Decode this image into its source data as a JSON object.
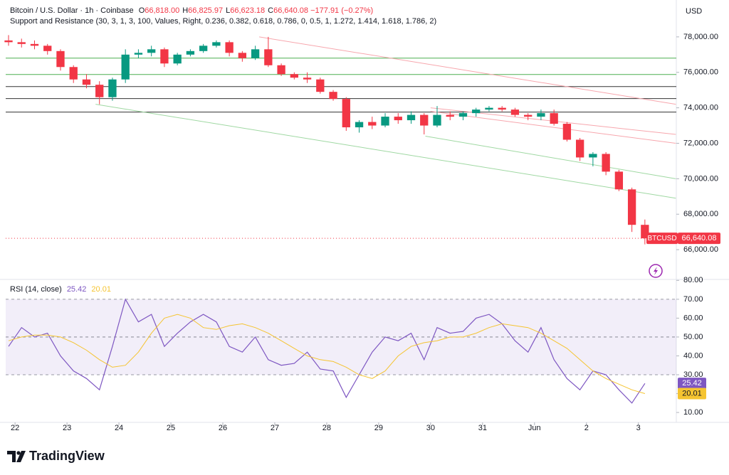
{
  "header": {
    "symbol": "Bitcoin / U.S. Dollar · 1h · Coinbase",
    "ohlc": [
      {
        "key": "O",
        "value": "66,818.00"
      },
      {
        "key": "H",
        "value": "66,825.97"
      },
      {
        "key": "L",
        "value": "66,623.18"
      },
      {
        "key": "C",
        "value": "66,640.08"
      }
    ],
    "change": "−177.91 (−0.27%)",
    "indicator": "Support and Resistance (30, 3, 1, 3, 100, Values, Right, 0.236, 0.382, 0.618, 0.786, 0, 0.5, 1, 1.272, 1.414, 1.618, 1.786, 2)"
  },
  "currency": "USD",
  "brand": "TradingView",
  "chart_data": [
    {
      "type": "candlestick",
      "up_color": "#089981",
      "down_color": "#f23645",
      "x": [
        -0.125,
        0.125,
        0.375,
        0.625,
        0.875,
        1.125,
        1.375,
        1.625,
        1.875,
        2.125,
        2.375,
        2.625,
        2.875,
        3.125,
        3.375,
        3.625,
        3.875,
        4.125,
        4.375,
        4.625,
        4.875,
        5.125,
        5.375,
        5.625,
        5.875,
        6.125,
        6.375,
        6.625,
        6.875,
        7.125,
        7.375,
        7.625,
        7.875,
        8.125,
        8.375,
        8.625,
        8.875,
        9.125,
        9.375,
        9.625,
        9.875,
        10.125,
        10.375,
        10.625,
        10.875,
        11.125,
        11.375,
        11.625,
        11.875,
        12.125
      ],
      "open": [
        77800,
        77700,
        77600,
        77500,
        77200,
        76300,
        75600,
        75300,
        74600,
        75600,
        77000,
        77100,
        77300,
        76500,
        77000,
        77200,
        77500,
        77700,
        77100,
        76800,
        77300,
        76400,
        75900,
        75700,
        75600,
        74900,
        74500,
        72900,
        73200,
        73000,
        73500,
        73300,
        73600,
        73000,
        73600,
        73500,
        73700,
        73900,
        74000,
        73900,
        73600,
        73500,
        73700,
        73100,
        72200,
        71200,
        71400,
        70400,
        69400,
        67400
      ],
      "high": [
        78100,
        77900,
        77800,
        77600,
        77300,
        76400,
        75900,
        75500,
        75700,
        77300,
        77300,
        77500,
        77400,
        77100,
        77300,
        77600,
        77800,
        77800,
        77200,
        77500,
        78000,
        76500,
        76000,
        76000,
        75700,
        75000,
        74600,
        73300,
        73500,
        73700,
        73700,
        73800,
        73700,
        74100,
        73800,
        73800,
        74000,
        74100,
        74100,
        74000,
        73700,
        73900,
        73900,
        73200,
        72300,
        71500,
        71500,
        70500,
        69500,
        67700
      ],
      "low": [
        77500,
        77400,
        77300,
        77000,
        76100,
        75400,
        75100,
        74200,
        74400,
        75400,
        76800,
        76900,
        76300,
        76400,
        76900,
        77100,
        77400,
        76900,
        76600,
        76700,
        76300,
        75800,
        75600,
        75400,
        74800,
        74400,
        72700,
        72600,
        72800,
        72900,
        73100,
        73100,
        72500,
        72900,
        73300,
        73300,
        73500,
        73800,
        73800,
        73500,
        73300,
        73300,
        73000,
        72100,
        71000,
        70700,
        70200,
        69300,
        67000,
        66300
      ],
      "close": [
        77700,
        77600,
        77500,
        77200,
        76300,
        75600,
        75300,
        74600,
        75600,
        77000,
        77100,
        77300,
        76500,
        77000,
        77200,
        77500,
        77700,
        77100,
        76800,
        77300,
        76400,
        75900,
        75700,
        75600,
        74900,
        74500,
        72900,
        73200,
        73000,
        73500,
        73300,
        73600,
        73000,
        73600,
        73500,
        73700,
        73900,
        74000,
        73900,
        73600,
        73500,
        73700,
        73100,
        72200,
        71200,
        71400,
        70400,
        69400,
        67400,
        66640
      ],
      "ticker": "BTCUSD",
      "last": {
        "value": 66640.08,
        "label": "66,640.08"
      },
      "levels": [
        {
          "value": 76800,
          "color": "#4caf50"
        },
        {
          "value": 75880,
          "color": "#4caf50"
        },
        {
          "value": 75200,
          "color": "#333333"
        },
        {
          "value": 74520,
          "color": "#333333"
        },
        {
          "value": 73760,
          "color": "#333333"
        }
      ],
      "trendlines": [
        {
          "color": "#f7a6ad",
          "points": [
            [
              4.7,
              78000
            ],
            [
              12.72,
              74200
            ]
          ]
        },
        {
          "color": "#f7a6ad",
          "points": [
            [
              8.0,
              74000
            ],
            [
              12.72,
              72500
            ]
          ]
        },
        {
          "color": "#f7a6ad",
          "points": [
            [
              8.0,
              73800
            ],
            [
              12.72,
              72000
            ]
          ]
        },
        {
          "color": "#9fd8a2",
          "points": [
            [
              1.55,
              74200
            ],
            [
              12.72,
              68900
            ]
          ]
        },
        {
          "color": "#9fd8a2",
          "points": [
            [
              7.9,
              72400
            ],
            [
              12.72,
              70000
            ]
          ]
        }
      ],
      "xlim": [
        -0.18,
        12.73
      ],
      "ylim": [
        64360,
        80080
      ],
      "yticks": [
        {
          "value": 66000,
          "label": "66,000.00"
        },
        {
          "value": 68000,
          "label": "68,000.00"
        },
        {
          "value": 70000,
          "label": "70,000.00"
        },
        {
          "value": 72000,
          "label": "72,000.00"
        },
        {
          "value": 74000,
          "label": "74,000.00"
        },
        {
          "value": 76000,
          "label": "76,000.00"
        },
        {
          "value": 78000,
          "label": "78,000.00"
        }
      ]
    },
    {
      "type": "line",
      "title": "RSI (14, close)",
      "x": [
        -0.125,
        0.125,
        0.375,
        0.625,
        0.875,
        1.125,
        1.375,
        1.625,
        1.875,
        2.125,
        2.375,
        2.625,
        2.875,
        3.125,
        3.375,
        3.625,
        3.875,
        4.125,
        4.375,
        4.625,
        4.875,
        5.125,
        5.375,
        5.625,
        5.875,
        6.125,
        6.375,
        6.625,
        6.875,
        7.125,
        7.375,
        7.625,
        7.875,
        8.125,
        8.375,
        8.625,
        8.875,
        9.125,
        9.375,
        9.625,
        9.875,
        10.125,
        10.375,
        10.625,
        10.875,
        11.125,
        11.375,
        11.625,
        11.875,
        12.125
      ],
      "series": [
        {
          "color": "#7e57c2",
          "values": [
            45,
            55,
            50,
            52,
            40,
            32,
            28,
            22,
            45,
            70,
            58,
            62,
            45,
            52,
            58,
            62,
            58,
            45,
            42,
            50,
            38,
            35,
            36,
            42,
            33,
            32,
            18,
            30,
            42,
            50,
            48,
            52,
            38,
            55,
            52,
            53,
            60,
            62,
            57,
            48,
            42,
            55,
            38,
            28,
            22,
            32,
            30,
            22,
            15,
            25.42
          ]
        },
        {
          "color": "#f5c431",
          "values": [
            48,
            50,
            51,
            51,
            50,
            47,
            43,
            38,
            34,
            35,
            42,
            52,
            60,
            62,
            60,
            55,
            54,
            56,
            57,
            55,
            52,
            48,
            44,
            40,
            38,
            37,
            34,
            30,
            28,
            32,
            40,
            45,
            47,
            48,
            50,
            50,
            52,
            55,
            57,
            56,
            55,
            52,
            48,
            44,
            38,
            32,
            28,
            25,
            22,
            20.01
          ]
        }
      ],
      "levels": [
        30,
        50,
        70
      ],
      "xlim": [
        -0.18,
        12.73
      ],
      "ylim": [
        4.75,
        80.5
      ],
      "yticks": [
        {
          "value": 10,
          "label": "10.00"
        },
        {
          "value": 20,
          "label": "20.00"
        },
        {
          "value": 30,
          "label": "30.00"
        },
        {
          "value": 40,
          "label": "40.00"
        },
        {
          "value": 50,
          "label": "50.00"
        },
        {
          "value": 60,
          "label": "60.00"
        },
        {
          "value": 70,
          "label": "70.00"
        },
        {
          "value": 80,
          "label": "80.00"
        }
      ],
      "xticks": [
        {
          "value": 0,
          "label": "22"
        },
        {
          "value": 1,
          "label": "23"
        },
        {
          "value": 2,
          "label": "24"
        },
        {
          "value": 3,
          "label": "25"
        },
        {
          "value": 4,
          "label": "26"
        },
        {
          "value": 5,
          "label": "27"
        },
        {
          "value": 6,
          "label": "28"
        },
        {
          "value": 7,
          "label": "29"
        },
        {
          "value": 8,
          "label": "30"
        },
        {
          "value": 9,
          "label": "31"
        },
        {
          "value": 10,
          "label": "Jun"
        },
        {
          "value": 11,
          "label": "2"
        },
        {
          "value": 12,
          "label": "3"
        }
      ]
    }
  ]
}
